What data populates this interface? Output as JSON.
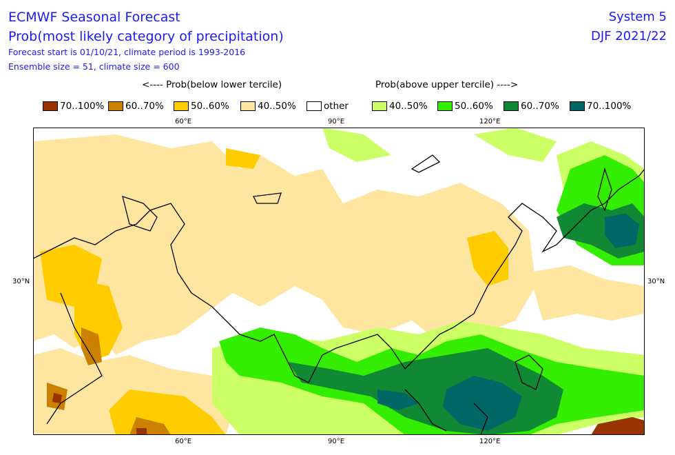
{
  "header": {
    "title": "ECMWF Seasonal Forecast",
    "subtitle": "Prob(most likely category of precipitation)",
    "line3": "Forecast start is 01/10/21, climate period is 1993-2016",
    "line4": "Ensemble size = 51, climate size = 600",
    "system": "System 5",
    "season": "DJF 2021/22"
  },
  "legend": {
    "below_heading": "<---- Prob(below lower tercile)",
    "above_heading": "Prob(above upper tercile) ---->",
    "items": [
      {
        "label": "70..100%",
        "color": "#993300"
      },
      {
        "label": "60..70%",
        "color": "#cc8000"
      },
      {
        "label": "50..60%",
        "color": "#ffcc00"
      },
      {
        "label": "40..50%",
        "color": "#ffe6a0"
      },
      {
        "label": "other",
        "color": "#ffffff"
      },
      {
        "label": "40..50%",
        "color": "#ccff66"
      },
      {
        "label": "50..60%",
        "color": "#33ee00"
      },
      {
        "label": "60..70%",
        "color": "#118833"
      },
      {
        "label": "70..100%",
        "color": "#006666"
      }
    ]
  },
  "axes": {
    "top_ticks": [
      "60°E",
      "90°E",
      "120°E"
    ],
    "bottom_ticks": [
      "60°E",
      "90°E",
      "120°E"
    ],
    "left_tick": "30°N",
    "right_tick": "30°N"
  }
}
